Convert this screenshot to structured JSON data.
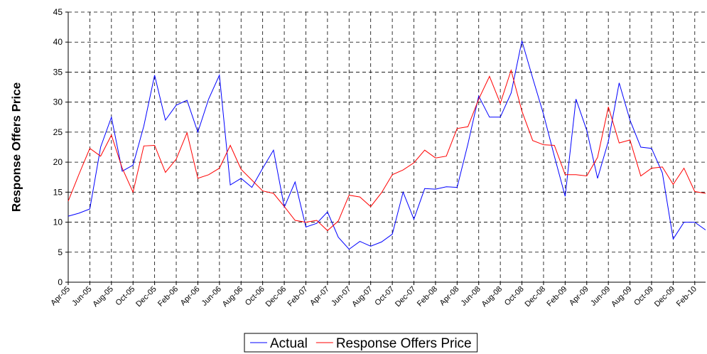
{
  "chart_data": {
    "type": "line",
    "ylabel": "Response Offers Price",
    "categories": [
      "Apr-05",
      null,
      "Jun-05",
      null,
      "Aug-05",
      null,
      "Oct-05",
      null,
      "Dec-05",
      null,
      "Feb-06",
      null,
      "Apr-06",
      null,
      "Jun-06",
      null,
      "Aug-06",
      null,
      "Oct-06",
      null,
      "Dec-06",
      null,
      "Feb-07",
      null,
      "Apr-07",
      null,
      "Jun-07",
      null,
      "Aug-07",
      null,
      "Oct-07",
      null,
      "Dec-07",
      null,
      "Feb-08",
      null,
      "Apr-08",
      null,
      "Jun-08",
      null,
      "Aug-08",
      null,
      "Oct-08",
      null,
      "Dec-08",
      null,
      "Feb-09",
      null,
      "Apr-09",
      null,
      "Jun-09",
      null,
      "Aug-09",
      null,
      "Oct-09",
      null,
      "Dec-09",
      null,
      "Feb-10",
      null
    ],
    "series": [
      {
        "name": "Actual",
        "color": "#0000ff",
        "values": [
          11,
          11.5,
          12.2,
          22.5,
          27.5,
          18.5,
          19.5,
          26,
          34.5,
          27,
          29.5,
          30.3,
          25,
          30.5,
          34.5,
          16.2,
          17.3,
          15.8,
          19,
          22,
          12.5,
          16.7,
          9.2,
          9.8,
          11.7,
          7.5,
          5.5,
          6.8,
          6,
          6.7,
          8,
          15,
          10.5,
          15.6,
          15.5,
          15.9,
          15.8,
          23,
          31,
          27.5,
          27.5,
          31.5,
          40.2,
          34,
          28,
          21,
          14.3,
          30.5,
          25.3,
          17.3,
          23.5,
          33.2,
          27,
          22.5,
          22.3,
          18.2,
          7.2,
          10,
          10,
          8.7
        ]
      },
      {
        "name": "Response Offers Price",
        "color": "#ff0000",
        "values": [
          13.5,
          18,
          22.3,
          21,
          24.5,
          19,
          15,
          22.7,
          22.8,
          18.3,
          20.5,
          24.9,
          17.3,
          17.9,
          19,
          22.8,
          18.8,
          17,
          15.2,
          14.8,
          12.6,
          10.3,
          10,
          10.3,
          8.6,
          10.2,
          14.5,
          14.2,
          12.6,
          14.9,
          17.9,
          18.7,
          19.9,
          22,
          20.7,
          21,
          25.6,
          25.9,
          30.5,
          34.3,
          29.8,
          35.3,
          28.5,
          23.6,
          22.9,
          22.8,
          17.9,
          17.9,
          17.7,
          20.8,
          29.2,
          23.2,
          23.7,
          17.7,
          19,
          19.2,
          16.3,
          19,
          15.1,
          14.8
        ]
      }
    ],
    "ylim": [
      0,
      45
    ],
    "yticks": [
      0,
      5,
      10,
      15,
      20,
      25,
      30,
      35,
      40,
      45
    ],
    "grid": true,
    "legend": "bottom"
  }
}
